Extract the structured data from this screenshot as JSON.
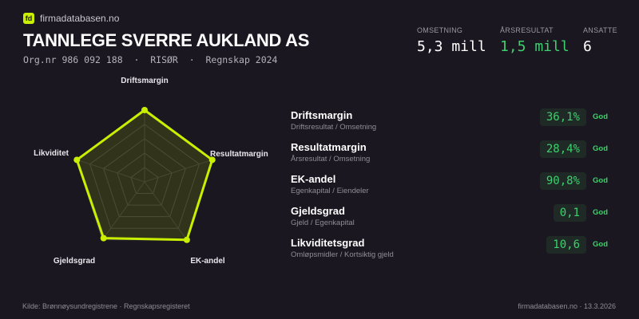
{
  "brand": {
    "logo": "fd",
    "site": "firmadatabasen.no"
  },
  "company": {
    "name": "TANNLEGE SVERRE AUKLAND AS",
    "subtitle": "Org.nr 986 092 188  ·  RISØR  ·  Regnskap 2024"
  },
  "kpis": [
    {
      "label": "OMSETNING",
      "value": "5,3 mill",
      "color": "#ffffff"
    },
    {
      "label": "ÅRSRESULTAT",
      "value": "1,5 mill",
      "color": "#3ecf6e"
    },
    {
      "label": "ANSATTE",
      "value": "6",
      "color": "#ffffff"
    }
  ],
  "metrics": [
    {
      "name": "Driftsmargin",
      "desc": "Driftsresultat / Omsetning",
      "value": "36,1%",
      "rating": "God"
    },
    {
      "name": "Resultatmargin",
      "desc": "Årsresultat / Omsetning",
      "value": "28,4%",
      "rating": "God"
    },
    {
      "name": "EK-andel",
      "desc": "Egenkapital / Eiendeler",
      "value": "90,8%",
      "rating": "God"
    },
    {
      "name": "Gjeldsgrad",
      "desc": "Gjeld / Egenkapital",
      "value": "0,1",
      "rating": "God"
    },
    {
      "name": "Likviditetsgrad",
      "desc": "Omløpsmidler / Kortsiktig gjeld",
      "value": "10,6",
      "rating": "God"
    }
  ],
  "chart_data": {
    "type": "radar",
    "axes": [
      "Driftsmargin",
      "Resultatmargin",
      "EK-andel",
      "Gjeldsgrad",
      "Likviditet"
    ],
    "values": [
      1,
      0.99,
      1,
      0.97,
      0.99
    ],
    "range": [
      0,
      1
    ],
    "rings": 5,
    "color": "#c8f000"
  },
  "footer": {
    "source": "Kilde: Brønnøysundregistrene · Regnskapsregisteret",
    "site_date": "firmadatabasen.no · 13.3.2026"
  }
}
